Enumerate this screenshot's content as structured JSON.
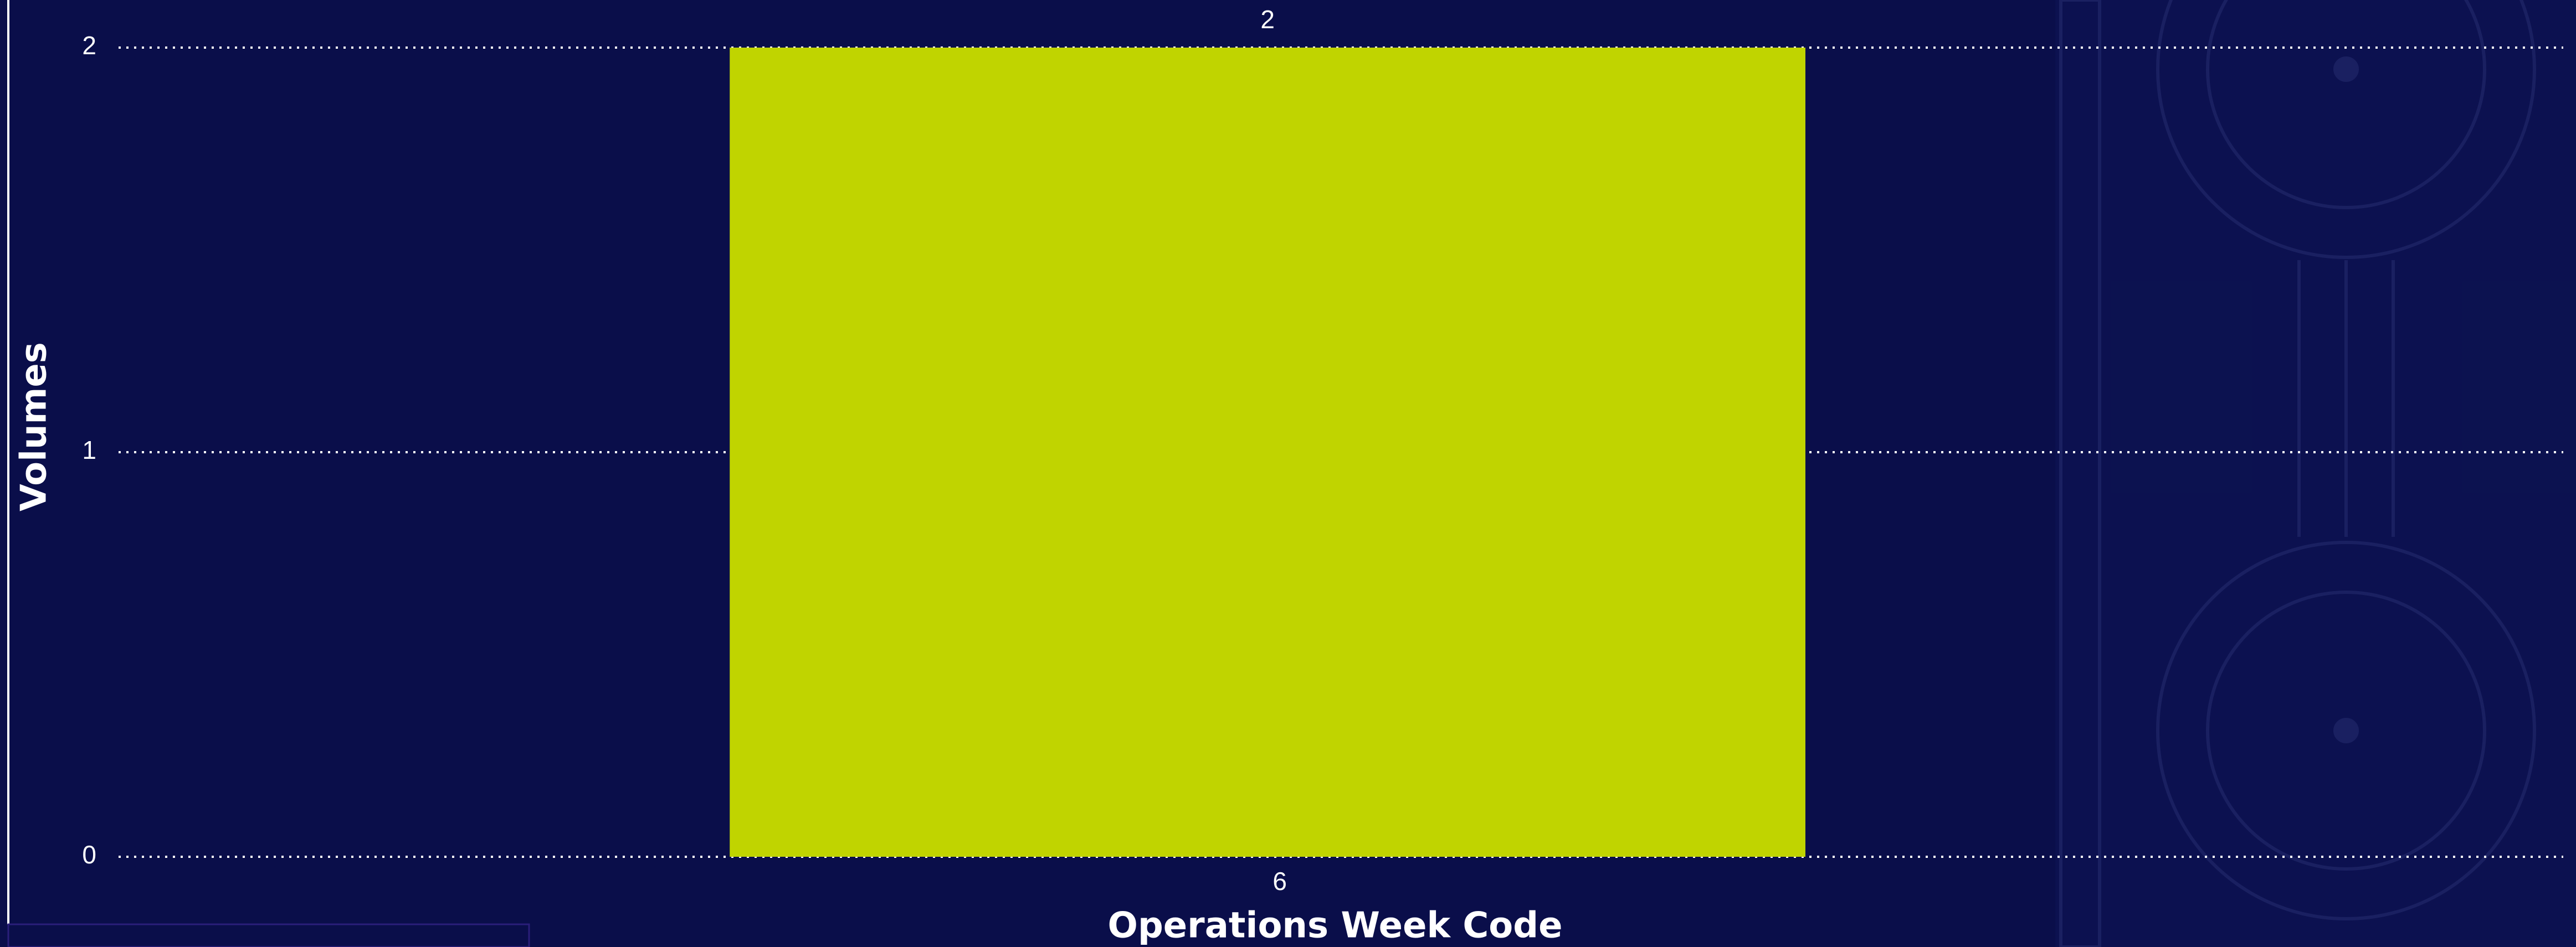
{
  "chart_data": {
    "type": "bar",
    "x_label": "Operations Week Code",
    "y_label": "Volumes",
    "categories": [
      "6"
    ],
    "values": [
      2
    ],
    "color": "#c0d400",
    "ylim": [
      0,
      2
    ],
    "yticks": [
      0,
      1,
      2
    ],
    "grid": true
  }
}
